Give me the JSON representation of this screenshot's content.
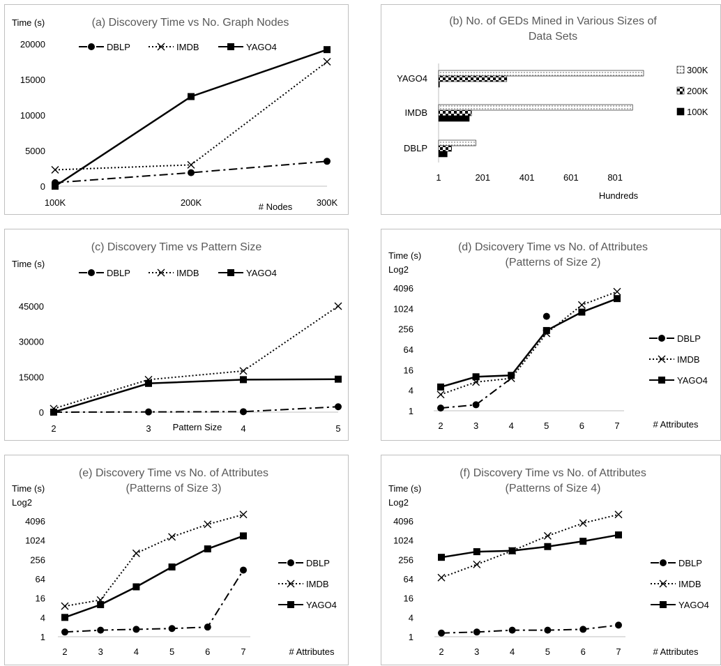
{
  "chart_data": [
    {
      "id": "a",
      "type": "line",
      "title": "(a) Discovery Time vs No. Graph Nodes",
      "ylabel": "Time (s)",
      "xlabel": "# Nodes",
      "categories": [
        "100K",
        "200K",
        "300K"
      ],
      "yticks": [
        "0",
        "5000",
        "10000",
        "15000",
        "20000"
      ],
      "ylim": [
        0,
        20000
      ],
      "series": [
        {
          "name": "DBLP",
          "values": [
            500,
            1900,
            3500
          ],
          "style": "dashdot",
          "marker": "circle"
        },
        {
          "name": "IMDB",
          "values": [
            2300,
            3000,
            17500
          ],
          "style": "dotted",
          "marker": "x"
        },
        {
          "name": "YAGO4",
          "values": [
            0,
            12600,
            19200
          ],
          "style": "solid",
          "marker": "square"
        }
      ]
    },
    {
      "id": "b",
      "type": "bar",
      "title_lines": [
        "(b) No. of GEDs Mined in Various Sizes of",
        "Data Sets"
      ],
      "categories": [
        "DBLP",
        "IMDB",
        "YAGO4"
      ],
      "xticks": [
        "1",
        "201",
        "401",
        "601",
        "801"
      ],
      "xlabel": "Hundreds",
      "xlim": [
        1,
        930
      ],
      "series": [
        {
          "name": "300K",
          "values": [
            170,
            880,
            930
          ],
          "pattern": "dots"
        },
        {
          "name": "200K",
          "values": [
            60,
            150,
            310
          ],
          "pattern": "checker"
        },
        {
          "name": "100K",
          "values": [
            40,
            140,
            5
          ],
          "pattern": "solid"
        }
      ]
    },
    {
      "id": "c",
      "type": "line",
      "title": "(c) Discovery Time vs Pattern Size",
      "ylabel": "Time (s)",
      "xlabel": "Pattern Size",
      "categories": [
        "2",
        "3",
        "4",
        "5"
      ],
      "yticks": [
        "0",
        "15000",
        "30000",
        "45000"
      ],
      "ylim": [
        0,
        45000
      ],
      "series": [
        {
          "name": "DBLP",
          "values": [
            0,
            100,
            200,
            2300
          ],
          "style": "dashdot",
          "marker": "circle"
        },
        {
          "name": "IMDB",
          "values": [
            1500,
            13800,
            17500,
            45000
          ],
          "style": "dotted",
          "marker": "x"
        },
        {
          "name": "YAGO4",
          "values": [
            0,
            12200,
            13800,
            14000
          ],
          "style": "solid",
          "marker": "square"
        }
      ]
    },
    {
      "id": "d",
      "type": "line",
      "title_lines": [
        "(d) Dsicovery Time vs No. of Attributes",
        "(Patterns of Size 2)"
      ],
      "ylabel_lines": [
        "Time (s)",
        "Log2"
      ],
      "xlabel": "# Attributes",
      "categories": [
        "2",
        "3",
        "4",
        "5",
        "6",
        "7"
      ],
      "yticks": [
        "1",
        "4",
        "16",
        "64",
        "256",
        "1024",
        "4096"
      ],
      "ylim_log2": [
        0,
        12
      ],
      "series": [
        {
          "name": "DBLP",
          "values": [
            1.2,
            1.5,
            null,
            600,
            null,
            null
          ],
          "style": "dashdot",
          "marker": "circle"
        },
        {
          "name": "IMDB",
          "values": [
            3,
            7,
            9,
            190,
            1300,
            3200
          ],
          "style": "dotted",
          "marker": "x"
        },
        {
          "name": "YAGO4",
          "values": [
            5,
            10,
            11,
            230,
            800,
            2000
          ],
          "style": "solid",
          "marker": "square"
        }
      ],
      "extra_dblp_link": [
        [
          3,
          1.5
        ],
        [
          4,
          9
        ]
      ]
    },
    {
      "id": "e",
      "type": "line",
      "title_lines": [
        "(e) Discovery Time vs No. of Attributes",
        "(Patterns of Size 3)"
      ],
      "ylabel_lines": [
        "Time (s)",
        "Log2"
      ],
      "xlabel": "# Attributes",
      "categories": [
        "2",
        "3",
        "4",
        "5",
        "6",
        "7"
      ],
      "yticks": [
        "1",
        "4",
        "16",
        "64",
        "256",
        "1024",
        "4096"
      ],
      "ylim_log2": [
        0,
        12
      ],
      "series": [
        {
          "name": "DBLP",
          "values": [
            1.4,
            1.6,
            1.7,
            1.8,
            2,
            120
          ],
          "style": "dashdot",
          "marker": "circle"
        },
        {
          "name": "IMDB",
          "values": [
            9,
            14,
            400,
            1300,
            3200,
            6500
          ],
          "style": "dotted",
          "marker": "x"
        },
        {
          "name": "YAGO4",
          "values": [
            4,
            10,
            36,
            150,
            550,
            1400
          ],
          "style": "solid",
          "marker": "square"
        }
      ]
    },
    {
      "id": "f",
      "type": "line",
      "title_lines": [
        "(f) Discovery Time vs No. of Attributes",
        "(Patterns of Size 4)"
      ],
      "ylabel_lines": [
        "Time (s)",
        "Log2"
      ],
      "xlabel": "# Attributes",
      "categories": [
        "2",
        "3",
        "4",
        "5",
        "6",
        "7"
      ],
      "yticks": [
        "1",
        "4",
        "16",
        "64",
        "256",
        "1024",
        "4096"
      ],
      "ylim_log2": [
        0,
        12
      ],
      "series": [
        {
          "name": "DBLP",
          "values": [
            1.3,
            1.4,
            1.6,
            1.6,
            1.7,
            2.3
          ],
          "style": "dashdot",
          "marker": "circle"
        },
        {
          "name": "IMDB",
          "values": [
            70,
            180,
            480,
            1400,
            3500,
            6500
          ],
          "style": "dotted",
          "marker": "x"
        },
        {
          "name": "YAGO4",
          "values": [
            300,
            450,
            480,
            650,
            950,
            1500
          ],
          "style": "solid",
          "marker": "square"
        }
      ]
    }
  ]
}
